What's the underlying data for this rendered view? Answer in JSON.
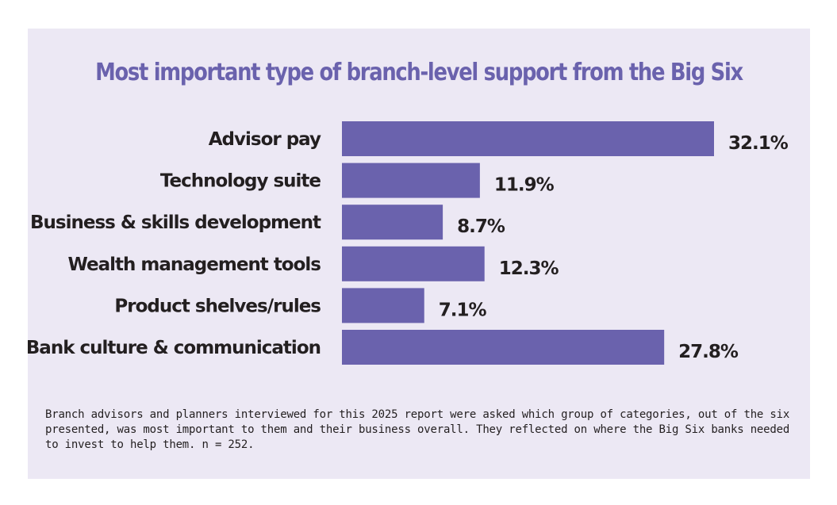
{
  "chart_data": {
    "type": "bar",
    "orientation": "horizontal",
    "title": "Most important type of branch-level support from the Big Six",
    "categories": [
      "Advisor pay",
      "Technology suite",
      "Business & skills development",
      "Wealth management tools",
      "Product shelves/rules",
      "Bank culture & communication"
    ],
    "values": [
      32.1,
      11.9,
      8.7,
      12.3,
      7.1,
      27.8
    ],
    "value_labels": [
      "32.1%",
      "11.9%",
      "8.7%",
      "12.3%",
      "7.1%",
      "27.8%"
    ],
    "xlim": [
      0,
      32.1
    ],
    "grid": false,
    "legend": "none",
    "bar_color": "#6a62ad"
  },
  "footnote": "Branch advisors and planners interviewed for this 2025 report were asked which group of categories, out of the six presented, was most important to them and their business overall. They reflected on where the Big Six banks needed to invest to help them. n = 252.",
  "colors": {
    "background": "#ece8f4",
    "accent": "#6a62ad",
    "text": "#231f20"
  }
}
